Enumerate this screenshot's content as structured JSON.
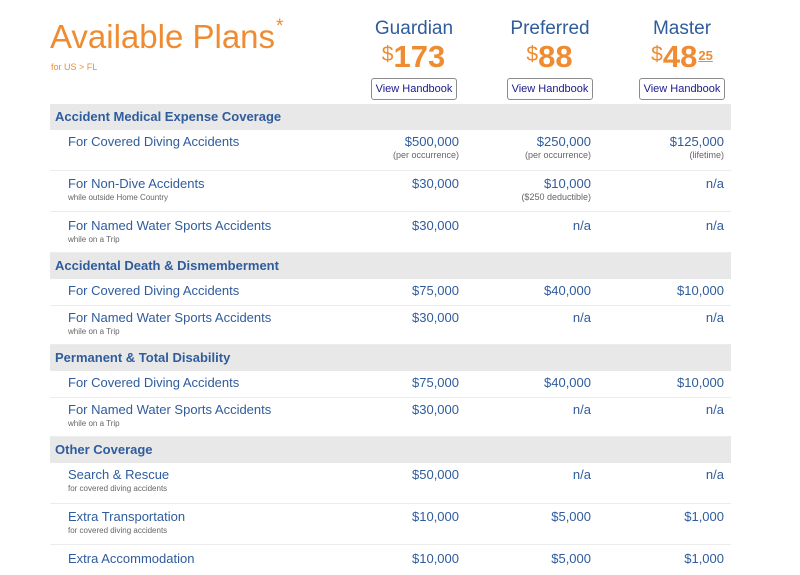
{
  "header": {
    "title": "Available Plans",
    "title_mark": "*",
    "location": "for US > FL"
  },
  "plans": [
    {
      "name": "Guardian",
      "currency": "$",
      "price": "173",
      "cents": "",
      "button": "View Handbook"
    },
    {
      "name": "Preferred",
      "currency": "$",
      "price": "88",
      "cents": "",
      "button": "View Handbook"
    },
    {
      "name": "Master",
      "currency": "$",
      "price": "48",
      "cents": "25",
      "button": "View Handbook"
    }
  ],
  "sections": [
    {
      "title": "Accident Medical Expense Coverage",
      "rows": [
        {
          "label": "For Covered Diving Accidents",
          "sub": "",
          "values": [
            {
              "v": "$500,000",
              "n": "(per occurrence)"
            },
            {
              "v": "$250,000",
              "n": "(per occurrence)"
            },
            {
              "v": "$125,000",
              "n": "(lifetime)"
            }
          ]
        },
        {
          "label": "For Non-Dive Accidents",
          "sub": "while outside Home Country",
          "values": [
            {
              "v": "$30,000",
              "n": ""
            },
            {
              "v": "$10,000",
              "n": "($250 deductible)"
            },
            {
              "v": "n/a",
              "n": ""
            }
          ]
        },
        {
          "label": "For Named Water Sports Accidents",
          "sub": "while on a Trip",
          "values": [
            {
              "v": "$30,000",
              "n": ""
            },
            {
              "v": "n/a",
              "n": ""
            },
            {
              "v": "n/a",
              "n": ""
            }
          ]
        }
      ]
    },
    {
      "title": "Accidental Death & Dismemberment",
      "rows": [
        {
          "label": "For Covered Diving Accidents",
          "sub": "",
          "values": [
            {
              "v": "$75,000",
              "n": ""
            },
            {
              "v": "$40,000",
              "n": ""
            },
            {
              "v": "$10,000",
              "n": ""
            }
          ]
        },
        {
          "label": "For Named Water Sports Accidents",
          "sub": "while on a Trip",
          "values": [
            {
              "v": "$30,000",
              "n": ""
            },
            {
              "v": "n/a",
              "n": ""
            },
            {
              "v": "n/a",
              "n": ""
            }
          ]
        }
      ]
    },
    {
      "title": "Permanent & Total Disability",
      "rows": [
        {
          "label": "For Covered Diving Accidents",
          "sub": "",
          "values": [
            {
              "v": "$75,000",
              "n": ""
            },
            {
              "v": "$40,000",
              "n": ""
            },
            {
              "v": "$10,000",
              "n": ""
            }
          ]
        },
        {
          "label": "For Named Water Sports Accidents",
          "sub": "while on a Trip",
          "values": [
            {
              "v": "$30,000",
              "n": ""
            },
            {
              "v": "n/a",
              "n": ""
            },
            {
              "v": "n/a",
              "n": ""
            }
          ]
        }
      ]
    },
    {
      "title": "Other Coverage",
      "rows": [
        {
          "label": "Search & Rescue",
          "sub": "for covered diving accidents",
          "values": [
            {
              "v": "$50,000",
              "n": ""
            },
            {
              "v": "n/a",
              "n": ""
            },
            {
              "v": "n/a",
              "n": ""
            }
          ]
        },
        {
          "label": "Extra Transportation",
          "sub": "for covered diving accidents",
          "values": [
            {
              "v": "$10,000",
              "n": ""
            },
            {
              "v": "$5,000",
              "n": ""
            },
            {
              "v": "$1,000",
              "n": ""
            }
          ]
        },
        {
          "label": "Extra Accommodation",
          "sub": "",
          "values": [
            {
              "v": "$10,000",
              "n": ""
            },
            {
              "v": "$5,000",
              "n": ""
            },
            {
              "v": "$1,000",
              "n": ""
            }
          ]
        }
      ]
    }
  ],
  "colors": {
    "accent": "#ef8c31",
    "text": "#2f5c9c",
    "section_bg": "#e8e8e8"
  }
}
